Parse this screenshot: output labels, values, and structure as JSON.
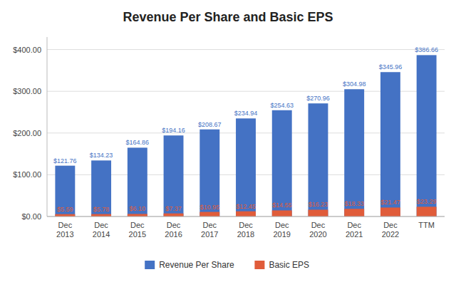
{
  "chart_data": {
    "type": "bar",
    "title": "Revenue Per Share and Basic EPS",
    "categories": [
      "Dec\n2013",
      "Dec\n2014",
      "Dec\n2015",
      "Dec\n2016",
      "Dec\n2017",
      "Dec\n2018",
      "Dec\n2019",
      "Dec\n2020",
      "Dec\n2021",
      "Dec\n2022",
      "TTM"
    ],
    "series": [
      {
        "name": "Revenue Per Share",
        "color": "#4472C4",
        "values": [
          121.76,
          134.23,
          164.86,
          194.16,
          208.67,
          234.94,
          254.63,
          270.96,
          304.98,
          345.96,
          386.66
        ],
        "value_labels": [
          "$121.76",
          "$134.23",
          "$164.86",
          "$194.16",
          "$208.67",
          "$234.94",
          "$254.63",
          "$270.96",
          "$304.98",
          "$345.96",
          "$386.66"
        ]
      },
      {
        "name": "Basic EPS",
        "color": "#E05C3A",
        "values": [
          5.59,
          5.78,
          6.1,
          7.37,
          10.95,
          12.45,
          14.55,
          16.23,
          18.33,
          21.47,
          23.29
        ],
        "value_labels": [
          "$5.59",
          "$5.78",
          "$6.10",
          "$7.37",
          "$10.95",
          "$12.45",
          "$14.55",
          "$16.23",
          "$18.33",
          "$21.47",
          "$23.29"
        ]
      }
    ],
    "ylim": [
      0,
      430
    ],
    "yticks": [
      {
        "value": 0,
        "label": "$0.00"
      },
      {
        "value": 100,
        "label": "$100.00"
      },
      {
        "value": 200,
        "label": "$200.00"
      },
      {
        "value": 300,
        "label": "$300.00"
      },
      {
        "value": 400,
        "label": "$400.00"
      }
    ],
    "grid": true,
    "legend": "bottom",
    "data_labels": true
  }
}
